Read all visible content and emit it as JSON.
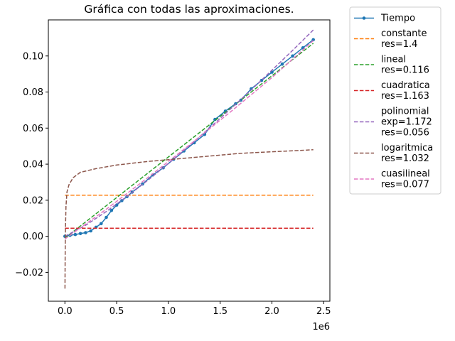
{
  "chart_data": {
    "type": "line",
    "title": "Gráfica con todas las aproximaciones.",
    "xlabel": "",
    "ylabel": "",
    "x_offset_label": "1e6",
    "xlim": [
      -160000,
      2560000
    ],
    "ylim": [
      -0.036,
      0.12
    ],
    "x_ticks": [
      0,
      0.5,
      1.0,
      1.5,
      2.0,
      2.5
    ],
    "x_tick_labels": [
      "0.0",
      "0.5",
      "1.0",
      "1.5",
      "2.0",
      "2.5"
    ],
    "y_ticks": [
      -0.02,
      0,
      0.02,
      0.04,
      0.06,
      0.08,
      0.1
    ],
    "y_tick_labels": [
      "−0.02",
      "0.00",
      "0.02",
      "0.04",
      "0.06",
      "0.08",
      "0.10"
    ],
    "grid": false,
    "legend_position": "outside-right",
    "series": [
      {
        "name": "Tiempo",
        "style": "solid-marker",
        "color": "#1f77b4",
        "x": [
          0,
          50000,
          100000,
          150000,
          200000,
          250000,
          300000,
          350000,
          400000,
          450000,
          500000,
          550000,
          600000,
          650000,
          750000,
          850000,
          950000,
          1050000,
          1150000,
          1250000,
          1350000,
          1450000,
          1550000,
          1650000,
          1700000,
          1800000,
          1900000,
          2000000,
          2100000,
          2200000,
          2300000,
          2400000
        ],
        "y": [
          0.0,
          0.0005,
          0.001,
          0.0015,
          0.002,
          0.003,
          0.005,
          0.007,
          0.0105,
          0.0143,
          0.0173,
          0.0198,
          0.022,
          0.0245,
          0.029,
          0.034,
          0.038,
          0.0427,
          0.0473,
          0.0519,
          0.0565,
          0.0648,
          0.0694,
          0.0735,
          0.0755,
          0.0818,
          0.0864,
          0.091,
          0.0955,
          0.1,
          0.1045,
          0.109
        ]
      },
      {
        "name": "constante",
        "label": "res=1.4",
        "style": "dashed",
        "color": "#ff7f0e",
        "x": [
          0,
          2400000
        ],
        "y": [
          0.0228,
          0.0228
        ]
      },
      {
        "name": "lineal",
        "label": "res=0.116",
        "style": "dashed",
        "color": "#2ca02c",
        "x": [
          0,
          2400000
        ],
        "y": [
          -0.001,
          0.107
        ]
      },
      {
        "name": "cuadratica",
        "label": "res=1.163",
        "style": "dashed",
        "color": "#d62728",
        "x": [
          0,
          2400000
        ],
        "y": [
          0.0045,
          0.0045
        ]
      },
      {
        "name": "polinomial",
        "label": "exp=1.172\nres=0.056",
        "style": "dashed",
        "color": "#9467bd",
        "x": [
          0,
          200000,
          400000,
          600000,
          800000,
          1000000,
          1200000,
          1400000,
          1600000,
          1800000,
          2000000,
          2200000,
          2400000
        ],
        "y": [
          0.0,
          0.0061,
          0.0137,
          0.0221,
          0.031,
          0.0404,
          0.0501,
          0.0602,
          0.0706,
          0.0812,
          0.0921,
          0.1031,
          0.1144
        ]
      },
      {
        "name": "logaritmica",
        "label": "res=1.032",
        "style": "dashed",
        "color": "#8c564b",
        "x": [
          1000,
          2000,
          3500,
          6000,
          10000,
          20000,
          40000,
          80000,
          150000,
          300000,
          500000,
          800000,
          1200000,
          1700000,
          2400000
        ],
        "y": [
          -0.029,
          -0.015,
          -0.004,
          0.0065,
          0.0165,
          0.0246,
          0.0287,
          0.0325,
          0.0355,
          0.0375,
          0.0395,
          0.0415,
          0.0435,
          0.046,
          0.048
        ]
      },
      {
        "name": "cuasilineal",
        "label": "res=0.077",
        "style": "dashed",
        "color": "#e377c2",
        "x": [
          0,
          400000,
          800000,
          1200000,
          1600000,
          2000000,
          2400000
        ],
        "y": [
          -0.0015,
          0.015,
          0.0325,
          0.0505,
          0.069,
          0.088,
          0.1085
        ]
      }
    ]
  }
}
